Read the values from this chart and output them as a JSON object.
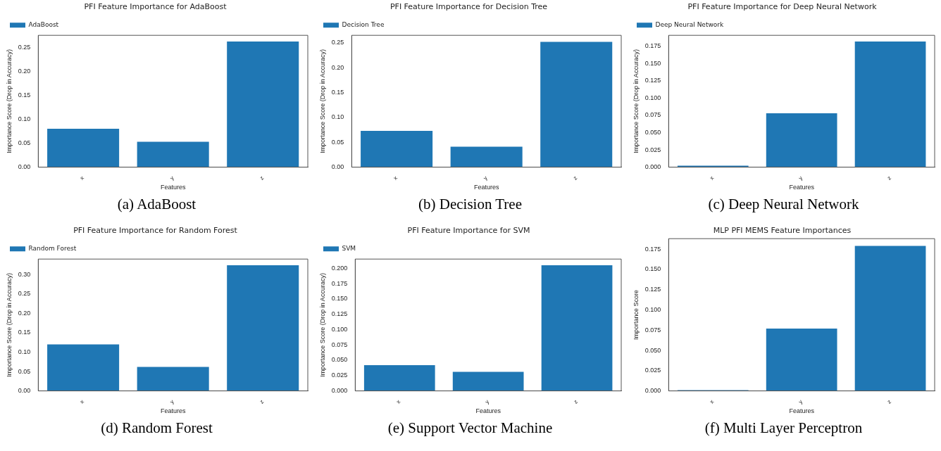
{
  "chart_data": [
    {
      "type": "bar",
      "title": "PFI Feature Importance for AdaBoost",
      "xlabel": "Features",
      "ylabel": "Importance Score (Drop in Accuracy)",
      "categories": [
        "x",
        "y",
        "z"
      ],
      "series": [
        {
          "name": "AdaBoost",
          "color": "#1f77b4",
          "values": [
            0.08,
            0.053,
            0.262
          ]
        }
      ],
      "ylim": [
        0,
        0.275
      ],
      "yticks": [
        {
          "value": 0,
          "label": "0.00"
        },
        0.05,
        {
          "value": 0.1,
          "label": "0.10"
        },
        0.15,
        {
          "value": 0.2,
          "label": "0.20"
        },
        0.25
      ],
      "legend": "top left",
      "grid": false,
      "annotations": [
        "(a) AdaBoost"
      ]
    },
    {
      "type": "bar",
      "title": "PFI Feature Importance for Decision Tree",
      "xlabel": "Features",
      "ylabel": "Importance Score (Drop in Accuracy)",
      "categories": [
        "x",
        "y",
        "z"
      ],
      "series": [
        {
          "name": "Decision Tree",
          "color": "#1f77b4",
          "values": [
            0.073,
            0.041,
            0.252
          ]
        }
      ],
      "ylim": [
        0,
        0.265
      ],
      "yticks": [
        {
          "value": 0,
          "label": "0.00"
        },
        0.05,
        {
          "value": 0.1,
          "label": "0.10"
        },
        0.15,
        {
          "value": 0.2,
          "label": "0.20"
        },
        0.25
      ],
      "legend": "top left",
      "grid": false,
      "annotations": [
        "(b) Decision Tree"
      ]
    },
    {
      "type": "bar",
      "title": "PFI Feature Importance for Deep Neural Network",
      "xlabel": "Features",
      "ylabel": "Importance Score (Drop in Accuracy)",
      "categories": [
        "x",
        "y",
        "z"
      ],
      "series": [
        {
          "name": "Deep Neural Network",
          "color": "#1f77b4",
          "values": [
            0.002,
            0.078,
            0.182
          ]
        }
      ],
      "ylim": [
        0,
        0.191
      ],
      "yticks": [
        {
          "value": 0,
          "label": "0.000"
        },
        0.025,
        {
          "value": 0.05,
          "label": "0.050"
        },
        0.075,
        {
          "value": 0.1,
          "label": "0.100"
        },
        0.125,
        {
          "value": 0.15,
          "label": "0.150"
        },
        0.175
      ],
      "legend": "top left",
      "grid": false,
      "annotations": [
        "(c) Deep Neural Network"
      ]
    },
    {
      "type": "bar",
      "title": "PFI Feature Importance for Random Forest",
      "xlabel": "Features",
      "ylabel": "Importance Score (Drop in Accuracy)",
      "categories": [
        "x",
        "y",
        "z"
      ],
      "series": [
        {
          "name": "Random Forest",
          "color": "#1f77b4",
          "values": [
            0.12,
            0.062,
            0.324
          ]
        }
      ],
      "ylim": [
        0,
        0.34
      ],
      "yticks": [
        {
          "value": 0,
          "label": "0.00"
        },
        0.05,
        {
          "value": 0.1,
          "label": "0.10"
        },
        0.15,
        {
          "value": 0.2,
          "label": "0.20"
        },
        0.25,
        {
          "value": 0.3,
          "label": "0.30"
        }
      ],
      "legend": "top left",
      "grid": false,
      "annotations": [
        "(d) Random Forest"
      ]
    },
    {
      "type": "bar",
      "title": "PFI Feature Importance for SVM",
      "xlabel": "Features",
      "ylabel": "Importance Score (Drop in Accuracy)",
      "categories": [
        "x",
        "y",
        "z"
      ],
      "series": [
        {
          "name": "SVM",
          "color": "#1f77b4",
          "values": [
            0.042,
            0.031,
            0.205
          ]
        }
      ],
      "ylim": [
        0,
        0.215
      ],
      "yticks": [
        {
          "value": 0,
          "label": "0.000"
        },
        0.025,
        {
          "value": 0.05,
          "label": "0.050"
        },
        0.075,
        {
          "value": 0.1,
          "label": "0.100"
        },
        0.125,
        {
          "value": 0.15,
          "label": "0.150"
        },
        0.175,
        {
          "value": 0.2,
          "label": "0.200"
        }
      ],
      "legend": "top left",
      "grid": false,
      "annotations": [
        "(e) Support Vector Machine"
      ]
    },
    {
      "type": "bar",
      "title": "MLP PFI MEMS Feature Importances",
      "xlabel": "Features",
      "ylabel": "Importance Score",
      "categories": [
        "x",
        "y",
        "z"
      ],
      "series": [
        {
          "color": "#1f77b4",
          "values": [
            0.001,
            0.077,
            0.179
          ]
        }
      ],
      "ylim": [
        0,
        0.188
      ],
      "yticks": [
        {
          "value": 0,
          "label": "0.000"
        },
        0.025,
        {
          "value": 0.05,
          "label": "0.050"
        },
        0.075,
        {
          "value": 0.1,
          "label": "0.100"
        },
        0.125,
        {
          "value": 0.15,
          "label": "0.150"
        },
        0.175
      ],
      "grid": false,
      "annotations": [
        "(f) Multi Layer Perceptron"
      ]
    }
  ]
}
